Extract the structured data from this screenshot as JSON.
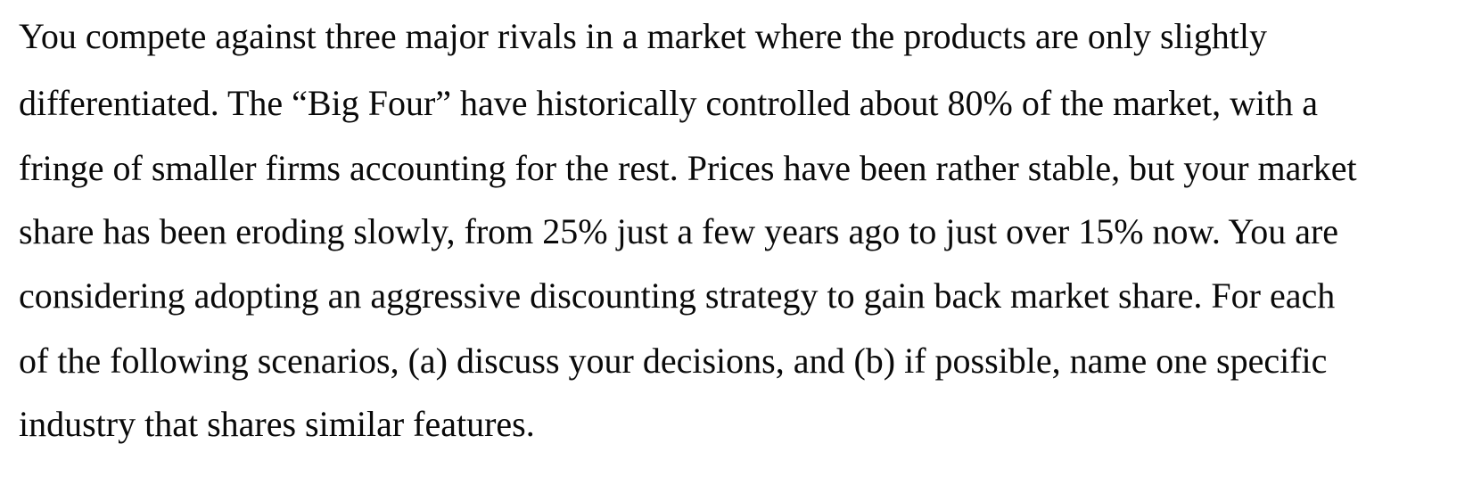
{
  "paragraph": {
    "lines": [
      "You compete against three major rivals in a market where the products are only slightly",
      "differentiated. The “Big Four” have historically controlled about 80% of the market, with a",
      "fringe of smaller firms accounting for the rest. Prices have been rather stable, but your market",
      "share has been eroding slowly, from 25% just a few years ago to just over 15% now. You are",
      "considering adopting an aggressive discounting strategy to gain back market share. For each",
      "of the following scenarios, (a) discuss your decisions, and (b) if possible, name one specific",
      "industry that shares similar features."
    ]
  }
}
